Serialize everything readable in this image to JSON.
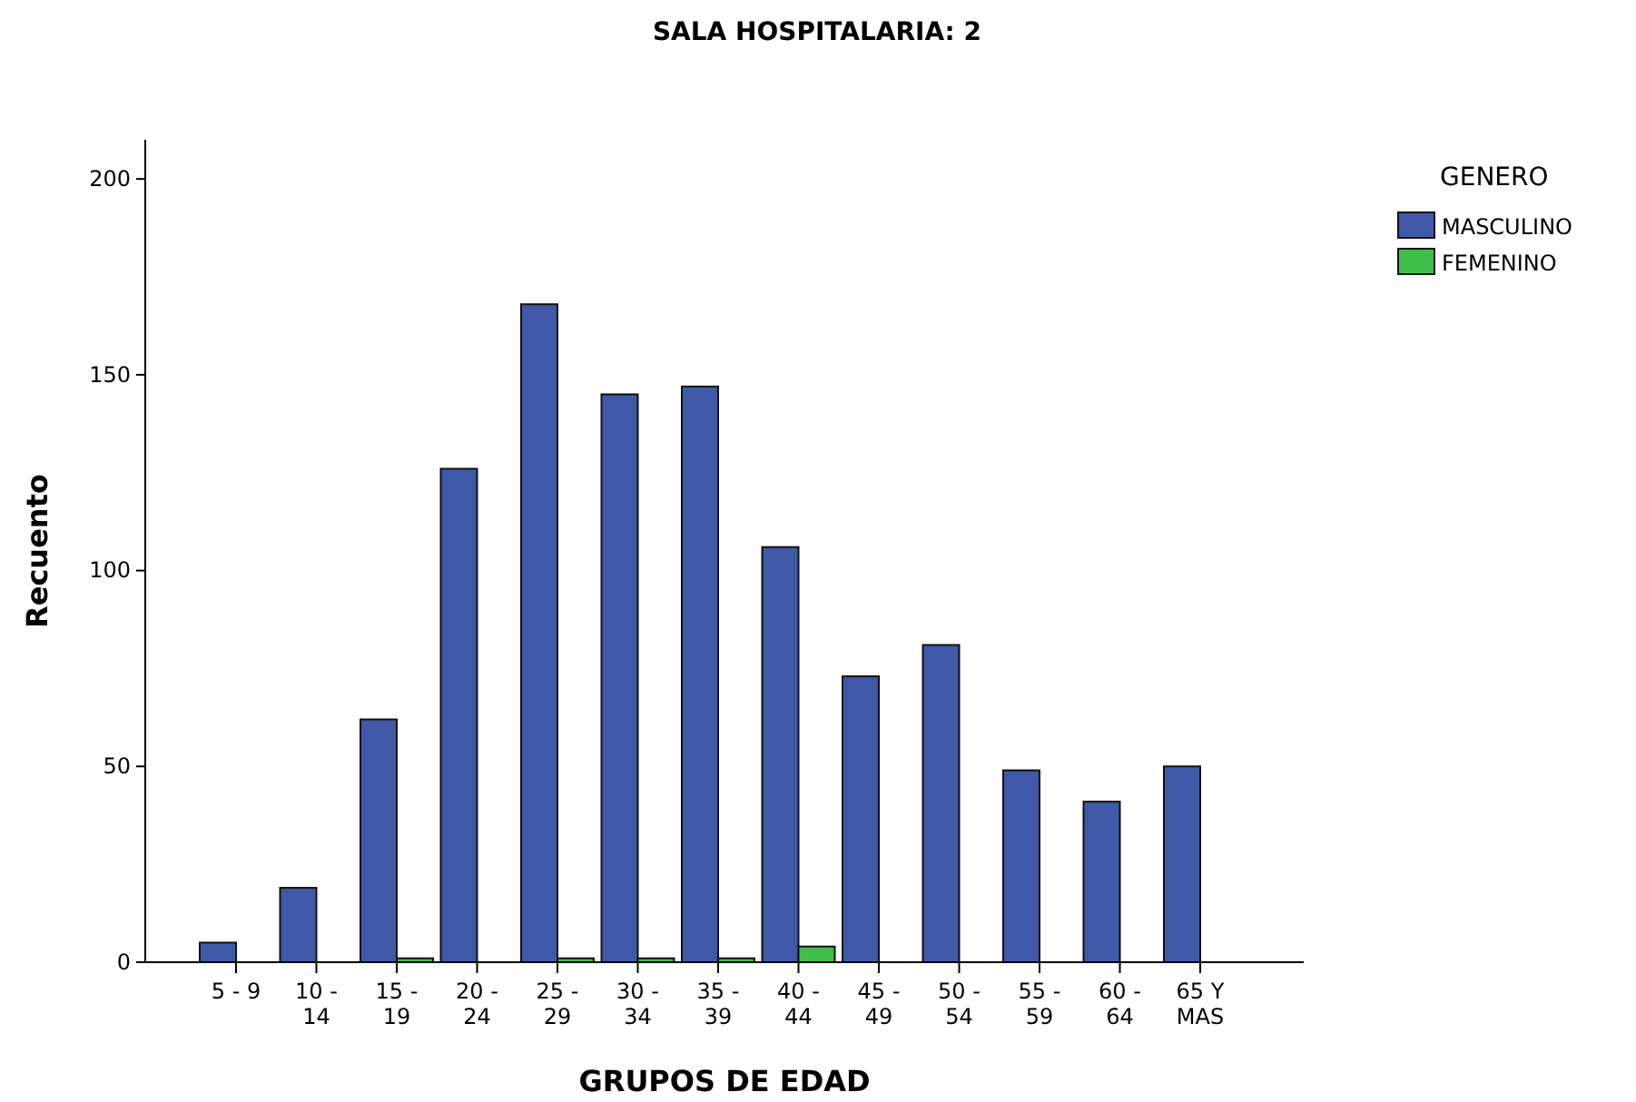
{
  "chart_data": {
    "type": "bar",
    "title": "SALA HOSPITALARIA: 2",
    "xlabel": "GRUPOS DE EDAD",
    "ylabel": "Recuento",
    "legend_title": "GENERO",
    "categories": [
      "5 - 9",
      "10 - 14",
      "15 - 19",
      "20 - 24",
      "25 - 29",
      "30 - 34",
      "35 - 39",
      "40 - 44",
      "45 - 49",
      "50 - 54",
      "55 - 59",
      "60 - 64",
      "65 Y MAS"
    ],
    "series": [
      {
        "name": "MASCULINO",
        "color": "#3f59a8",
        "values": [
          5,
          19,
          62,
          126,
          168,
          145,
          147,
          106,
          73,
          81,
          49,
          41,
          50
        ]
      },
      {
        "name": "FEMENINO",
        "color": "#3fbf4a",
        "values": [
          null,
          null,
          1,
          null,
          1,
          1,
          1,
          4,
          null,
          null,
          null,
          null,
          null
        ]
      }
    ],
    "ylim": [
      0,
      210
    ],
    "yticks": [
      0,
      50,
      100,
      150,
      200
    ],
    "grid": false,
    "legend": "top right"
  }
}
